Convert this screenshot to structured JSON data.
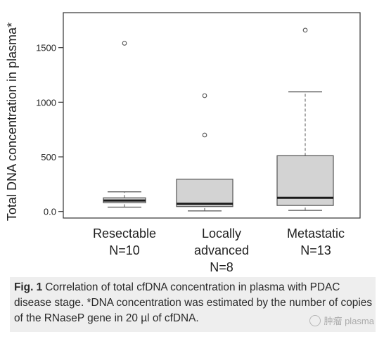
{
  "chart_data": {
    "type": "boxplot",
    "ylabel": "Total DNA concentration in plasma*",
    "ylim": [
      -60,
      1820
    ],
    "yticks": [
      0,
      500,
      1000,
      1500
    ],
    "ytick_labels": [
      "0.0",
      "500",
      "1000",
      "1500"
    ],
    "grid": false,
    "categories": [
      {
        "name": "Resectable",
        "n_label": "N=10"
      },
      {
        "name": "Locally advanced",
        "n_label": "N=8"
      },
      {
        "name": "Metastatic",
        "n_label": "N=13"
      }
    ],
    "boxes": [
      {
        "whisker_low": 40,
        "q1": 80,
        "median": 100,
        "q3": 125,
        "whisker_high": 180,
        "outliers": [
          1540
        ]
      },
      {
        "whisker_low": 5,
        "q1": 45,
        "median": 70,
        "q3": 295,
        "whisker_high": 295,
        "outliers": [
          700,
          1060
        ]
      },
      {
        "whisker_low": 10,
        "q1": 55,
        "median": 125,
        "q3": 510,
        "whisker_high": 1095,
        "outliers": [
          1660
        ]
      }
    ],
    "colors": {
      "box_fill": "#d3d3d3",
      "box_stroke": "#555555",
      "median": "#1a1a1a",
      "axis": "#333333"
    }
  },
  "axis": {
    "ylabel": "Total DNA concentration in plasma*"
  },
  "x_labels": [
    {
      "name": "Resectable",
      "n": "N=10"
    },
    {
      "name_line1": "Locally",
      "name_line2": "advanced",
      "n": "N=8"
    },
    {
      "name": "Metastatic",
      "n": "N=13"
    }
  ],
  "caption": {
    "fig_label": "Fig. 1",
    "text": "Correlation of total cfDNA concentration in plasma with PDAC disease stage. *DNA concentration was estimated by the number of copies of the RNaseP gene in 20 µl of cfDNA."
  },
  "watermark": {
    "text": "肿瘤 plasma"
  }
}
